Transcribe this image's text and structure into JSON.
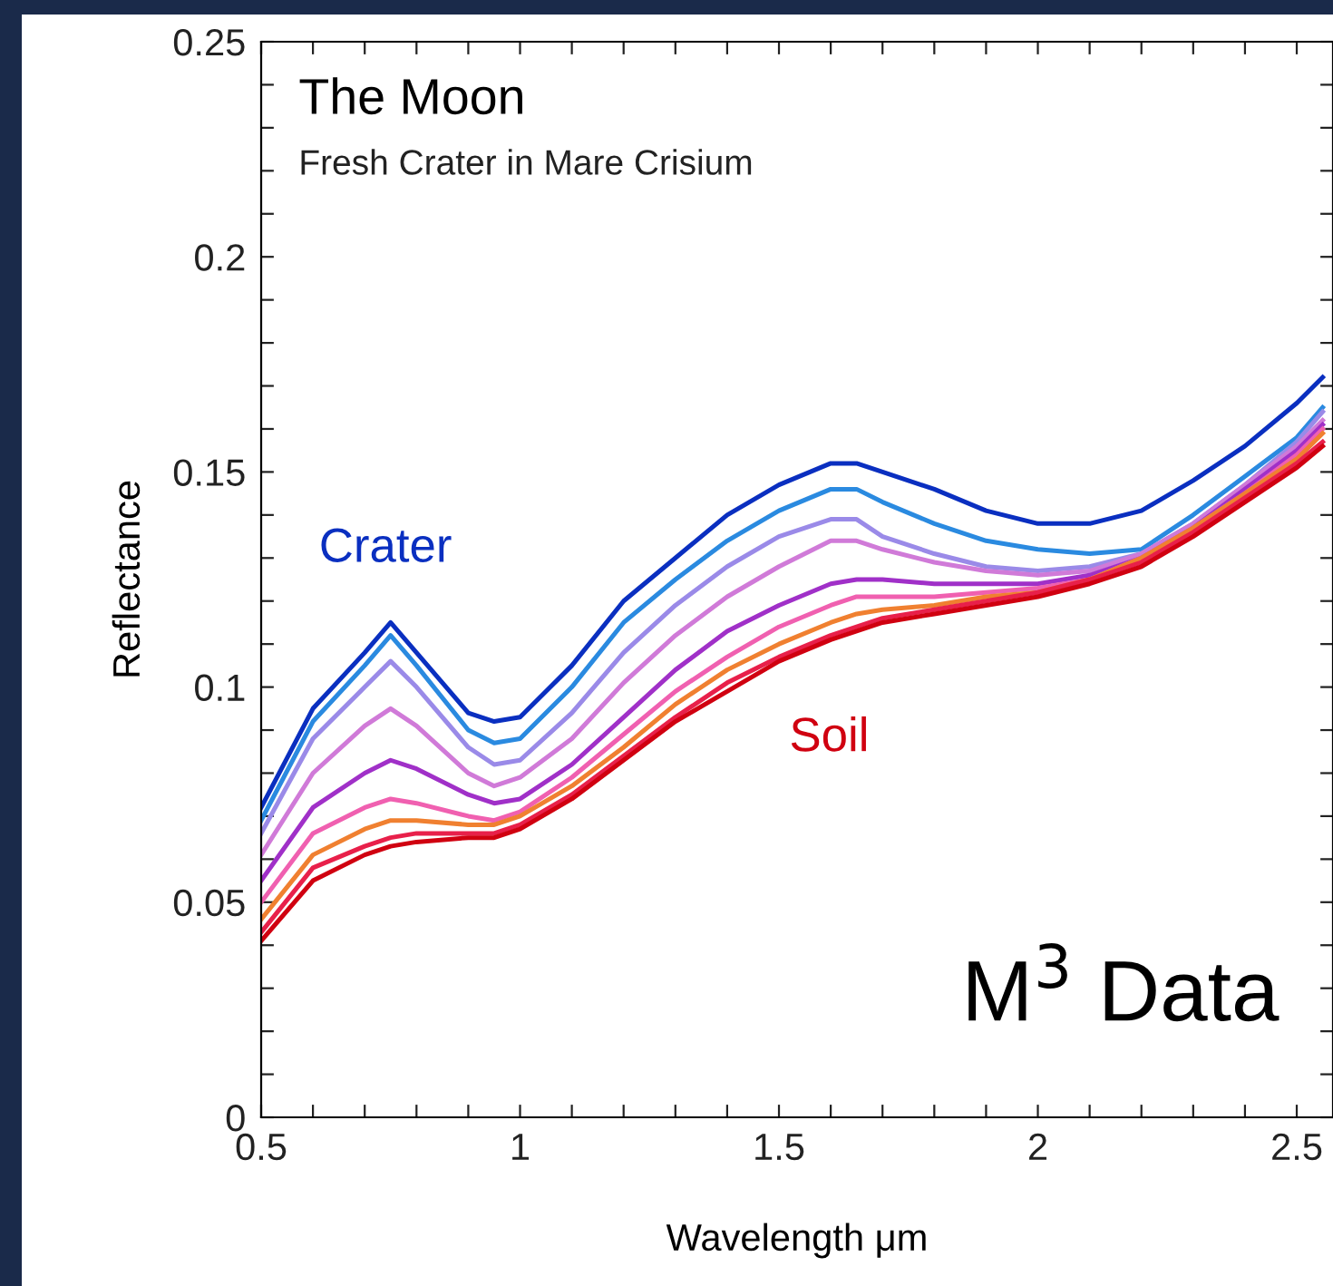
{
  "chart_data": {
    "type": "line",
    "title": "The Moon",
    "subtitle": "Fresh Crater in Mare Crisium",
    "xlabel": "Wavelength μm",
    "ylabel": "Reflectance",
    "x": [
      0.5,
      0.6,
      0.7,
      0.75,
      0.8,
      0.9,
      0.95,
      1.0,
      1.1,
      1.2,
      1.3,
      1.4,
      1.5,
      1.6,
      1.65,
      1.7,
      1.8,
      1.9,
      2.0,
      2.1,
      2.2,
      2.3,
      2.4,
      2.5,
      2.55
    ],
    "series": [
      {
        "color": "#0a2fc0",
        "values": [
          0.072,
          0.095,
          0.108,
          0.115,
          0.108,
          0.094,
          0.092,
          0.093,
          0.105,
          0.12,
          0.13,
          0.14,
          0.147,
          0.152,
          0.152,
          0.15,
          0.146,
          0.141,
          0.138,
          0.138,
          0.141,
          0.148,
          0.156,
          0.166,
          0.172
        ]
      },
      {
        "color": "#2a8ae0",
        "values": [
          0.069,
          0.092,
          0.105,
          0.112,
          0.105,
          0.09,
          0.087,
          0.088,
          0.1,
          0.115,
          0.125,
          0.134,
          0.141,
          0.146,
          0.146,
          0.143,
          0.138,
          0.134,
          0.132,
          0.131,
          0.132,
          0.14,
          0.149,
          0.158,
          0.165
        ]
      },
      {
        "color": "#9a8ae8",
        "values": [
          0.066,
          0.088,
          0.1,
          0.106,
          0.1,
          0.086,
          0.082,
          0.083,
          0.094,
          0.108,
          0.119,
          0.128,
          0.135,
          0.139,
          0.139,
          0.135,
          0.131,
          0.128,
          0.127,
          0.128,
          0.131,
          0.138,
          0.147,
          0.157,
          0.164
        ]
      },
      {
        "color": "#d07ad8",
        "values": [
          0.061,
          0.08,
          0.091,
          0.095,
          0.091,
          0.08,
          0.077,
          0.079,
          0.088,
          0.101,
          0.112,
          0.121,
          0.128,
          0.134,
          0.134,
          0.132,
          0.129,
          0.127,
          0.126,
          0.127,
          0.131,
          0.138,
          0.147,
          0.156,
          0.162
        ]
      },
      {
        "color": "#a030c8",
        "values": [
          0.055,
          0.072,
          0.08,
          0.083,
          0.081,
          0.075,
          0.073,
          0.074,
          0.082,
          0.093,
          0.104,
          0.113,
          0.119,
          0.124,
          0.125,
          0.125,
          0.124,
          0.124,
          0.124,
          0.126,
          0.13,
          0.137,
          0.146,
          0.155,
          0.161
        ]
      },
      {
        "color": "#f060b0",
        "values": [
          0.05,
          0.066,
          0.072,
          0.074,
          0.073,
          0.07,
          0.069,
          0.071,
          0.079,
          0.089,
          0.099,
          0.107,
          0.114,
          0.119,
          0.121,
          0.121,
          0.121,
          0.122,
          0.123,
          0.125,
          0.13,
          0.137,
          0.145,
          0.154,
          0.16
        ]
      },
      {
        "color": "#f08030",
        "values": [
          0.046,
          0.061,
          0.067,
          0.069,
          0.069,
          0.068,
          0.068,
          0.07,
          0.077,
          0.086,
          0.096,
          0.104,
          0.11,
          0.115,
          0.117,
          0.118,
          0.119,
          0.121,
          0.122,
          0.125,
          0.13,
          0.137,
          0.145,
          0.153,
          0.159
        ]
      },
      {
        "color": "#e8204a",
        "values": [
          0.043,
          0.058,
          0.063,
          0.065,
          0.066,
          0.066,
          0.066,
          0.068,
          0.075,
          0.084,
          0.093,
          0.101,
          0.107,
          0.112,
          0.114,
          0.116,
          0.118,
          0.12,
          0.122,
          0.125,
          0.129,
          0.136,
          0.144,
          0.152,
          0.157
        ]
      },
      {
        "color": "#d00010",
        "values": [
          0.041,
          0.055,
          0.061,
          0.063,
          0.064,
          0.065,
          0.065,
          0.067,
          0.074,
          0.083,
          0.092,
          0.099,
          0.106,
          0.111,
          0.113,
          0.115,
          0.117,
          0.119,
          0.121,
          0.124,
          0.128,
          0.135,
          0.143,
          0.151,
          0.156
        ]
      }
    ],
    "annotations": [
      "Crater",
      "Soil",
      "M$^{3}$ Data"
    ],
    "xlim": [
      0.5,
      2.57
    ],
    "ylim": [
      0,
      0.25
    ],
    "xticks": [
      0.5,
      {
        "value": 0.6,
        "label": null
      },
      {
        "value": 0.7,
        "label": null
      },
      {
        "value": 0.8,
        "label": null
      },
      {
        "value": 0.9,
        "label": null
      },
      1,
      {
        "value": 1.1,
        "label": null
      },
      {
        "value": 1.2,
        "label": null
      },
      {
        "value": 1.3,
        "label": null
      },
      {
        "value": 1.4,
        "label": null
      },
      1.5,
      {
        "value": 1.6,
        "label": null
      },
      {
        "value": 1.7,
        "label": null
      },
      {
        "value": 1.8,
        "label": null
      },
      {
        "value": 1.9,
        "label": null
      },
      2,
      {
        "value": 2.1,
        "label": null
      },
      {
        "value": 2.2,
        "label": null
      },
      {
        "value": 2.3,
        "label": null
      },
      {
        "value": 2.4,
        "label": null
      },
      2.5
    ],
    "yticks": [
      0,
      {
        "value": 0.01,
        "label": null
      },
      {
        "value": 0.02,
        "label": null
      },
      {
        "value": 0.03,
        "label": null
      },
      {
        "value": 0.04,
        "label": null
      },
      0.05,
      {
        "value": 0.06,
        "label": null
      },
      {
        "value": 0.07,
        "label": null
      },
      {
        "value": 0.08,
        "label": null
      },
      {
        "value": 0.09,
        "label": null
      },
      0.1,
      {
        "value": 0.11,
        "label": null
      },
      {
        "value": 0.12,
        "label": null
      },
      {
        "value": 0.13,
        "label": null
      },
      {
        "value": 0.14,
        "label": null
      },
      0.15,
      {
        "value": 0.16,
        "label": null
      },
      {
        "value": 0.17,
        "label": null
      },
      {
        "value": 0.18,
        "label": null
      },
      {
        "value": 0.19,
        "label": null
      },
      0.2,
      {
        "value": 0.21,
        "label": null
      },
      {
        "value": 0.22,
        "label": null
      },
      {
        "value": 0.23,
        "label": null
      },
      {
        "value": 0.24,
        "label": null
      },
      0.25
    ],
    "grid": false,
    "legend": false,
    "marker": "none",
    "line_style": "solid"
  }
}
